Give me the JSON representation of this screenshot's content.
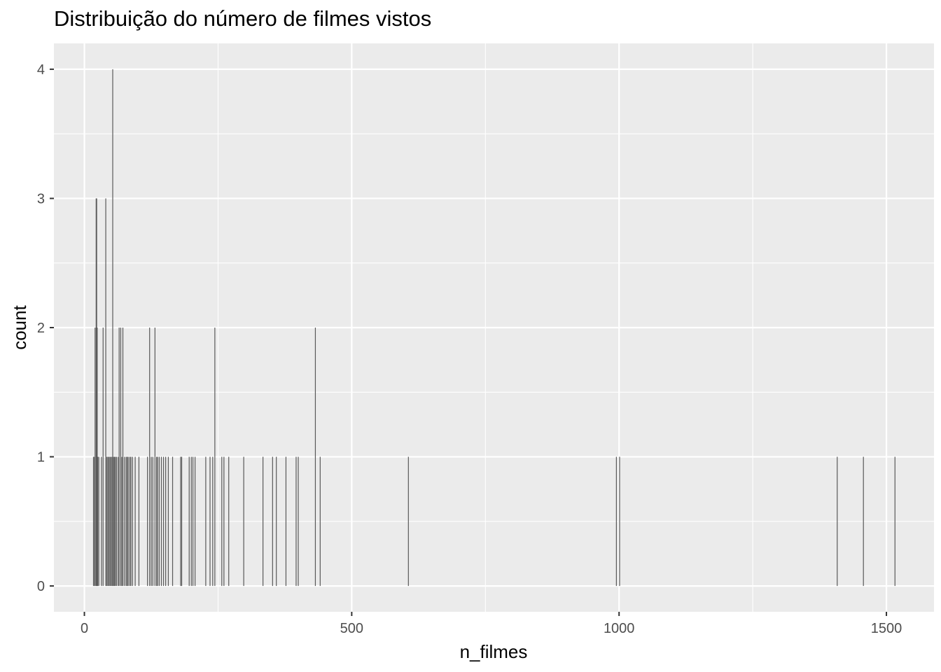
{
  "chart_data": {
    "type": "bar",
    "title": "Distribuição do número de filmes vistos",
    "xlabel": "n_filmes",
    "ylabel": "count",
    "xlim": [
      -57,
      1589
    ],
    "ylim": [
      -0.2,
      4.2
    ],
    "x_ticks": [
      0,
      500,
      1000,
      1500
    ],
    "x_tick_labels": [
      "0",
      "500",
      "1000",
      "1500"
    ],
    "y_ticks": [
      0,
      1,
      2,
      3,
      4
    ],
    "y_tick_labels": [
      "0",
      "1",
      "2",
      "3",
      "4"
    ],
    "grid": true,
    "legend": "none",
    "colors": {
      "panel": "#ebebeb",
      "grid": "#ffffff",
      "bar": "#595959",
      "tick_text": "#4d4d4d"
    },
    "x": [
      17,
      19,
      20,
      22,
      23,
      24,
      25,
      27,
      32,
      35,
      40,
      42,
      44,
      46,
      48,
      50,
      52,
      53,
      55,
      56,
      58,
      60,
      63,
      65,
      68,
      70,
      72,
      75,
      78,
      80,
      82,
      85,
      87,
      90,
      95,
      102,
      118,
      122,
      125,
      128,
      132,
      135,
      137,
      140,
      144,
      148,
      152,
      157,
      165,
      180,
      182,
      196,
      200,
      203,
      207,
      227,
      235,
      240,
      244,
      257,
      261,
      270,
      298,
      334,
      352,
      359,
      377,
      396,
      400,
      432,
      441,
      606,
      995,
      1001,
      1408,
      1457,
      1516
    ],
    "values": [
      1,
      1,
      2,
      3,
      3,
      2,
      1,
      1,
      1,
      2,
      3,
      1,
      1,
      1,
      1,
      1,
      1,
      4,
      1,
      1,
      1,
      1,
      1,
      2,
      2,
      1,
      2,
      1,
      1,
      1,
      1,
      1,
      1,
      1,
      1,
      1,
      1,
      2,
      1,
      1,
      2,
      1,
      1,
      1,
      1,
      1,
      1,
      1,
      1,
      1,
      1,
      1,
      1,
      1,
      1,
      1,
      1,
      1,
      2,
      1,
      1,
      1,
      1,
      1,
      1,
      1,
      1,
      1,
      1,
      2,
      1,
      1,
      1,
      1,
      1,
      1,
      1
    ]
  }
}
